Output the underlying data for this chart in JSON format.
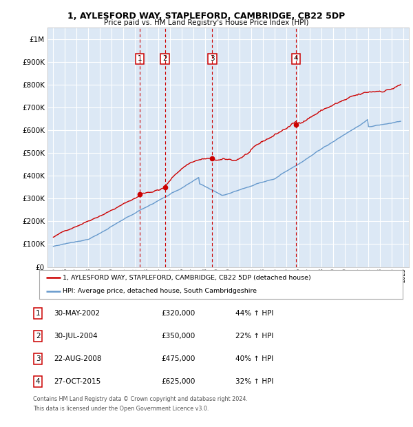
{
  "title": "1, AYLESFORD WAY, STAPLEFORD, CAMBRIDGE, CB22 5DP",
  "subtitle": "Price paid vs. HM Land Registry's House Price Index (HPI)",
  "legend_line1": "1, AYLESFORD WAY, STAPLEFORD, CAMBRIDGE, CB22 5DP (detached house)",
  "legend_line2": "HPI: Average price, detached house, South Cambridgeshire",
  "footer_line1": "Contains HM Land Registry data © Crown copyright and database right 2024.",
  "footer_line2": "This data is licensed under the Open Government Licence v3.0.",
  "transactions": [
    {
      "num": 1,
      "date": "30-MAY-2002",
      "price": 320000,
      "pct": "44%",
      "dir": "↑"
    },
    {
      "num": 2,
      "date": "30-JUL-2004",
      "price": 350000,
      "pct": "22%",
      "dir": "↑"
    },
    {
      "num": 3,
      "date": "22-AUG-2008",
      "price": 475000,
      "pct": "40%",
      "dir": "↑"
    },
    {
      "num": 4,
      "date": "27-OCT-2015",
      "price": 625000,
      "pct": "32%",
      "dir": "↑"
    }
  ],
  "transaction_years": [
    2002.42,
    2004.58,
    2008.64,
    2015.83
  ],
  "transaction_prices": [
    320000,
    350000,
    475000,
    625000
  ],
  "red_line_color": "#cc0000",
  "blue_line_color": "#6699cc",
  "background_color": "#ffffff",
  "plot_bg_color": "#dce8f5",
  "grid_color": "#ffffff",
  "dashed_color": "#cc0000",
  "ylim": [
    0,
    1050000
  ],
  "yticks": [
    0,
    100000,
    200000,
    300000,
    400000,
    500000,
    600000,
    700000,
    800000,
    900000,
    1000000
  ],
  "xlim_start": 1994.5,
  "xlim_end": 2025.5
}
